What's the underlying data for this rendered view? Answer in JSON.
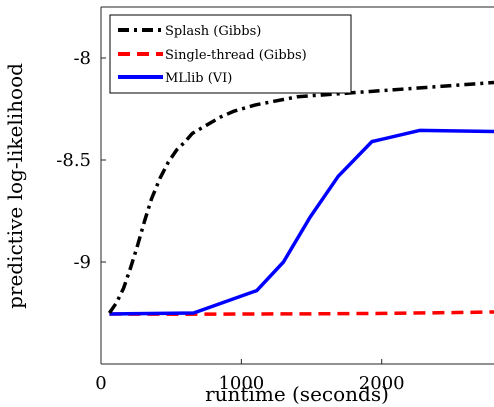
{
  "chart_data": {
    "type": "line",
    "title": "",
    "xlabel": "runtime (seconds)",
    "ylabel": "predictive log-likelihood",
    "xlim": [
      0,
      2800
    ],
    "ylim": [
      -9.5,
      -7.75
    ],
    "xticks": [
      0,
      1000,
      2000
    ],
    "xtick_labels": [
      "0",
      "1000",
      "2000"
    ],
    "yticks": [
      -9,
      -8.5,
      -8
    ],
    "ytick_labels": [
      "-9",
      "-8.5",
      "-8"
    ],
    "grid": false,
    "legend_position": "top-left",
    "series": [
      {
        "name": "Splash (Gibbs)",
        "color": "#000000",
        "dash": "dash-dot",
        "x": [
          60,
          110,
          160,
          210,
          260,
          310,
          360,
          420,
          480,
          540,
          600,
          650,
          750,
          850,
          950,
          1100,
          1250,
          1400,
          1600,
          1800,
          2000,
          2200,
          2400,
          2600,
          2800
        ],
        "y": [
          -9.25,
          -9.2,
          -9.13,
          -9.03,
          -8.92,
          -8.8,
          -8.69,
          -8.59,
          -8.51,
          -8.45,
          -8.41,
          -8.37,
          -8.33,
          -8.29,
          -8.26,
          -8.23,
          -8.21,
          -8.19,
          -8.18,
          -8.17,
          -8.16,
          -8.15,
          -8.14,
          -8.13,
          -8.12
        ]
      },
      {
        "name": "Single-thread (Gibbs)",
        "color": "#ff0000",
        "dash": "dashed",
        "x": [
          60,
          600,
          1000,
          1500,
          2000,
          2500,
          2800
        ],
        "y": [
          -9.255,
          -9.256,
          -9.255,
          -9.254,
          -9.252,
          -9.248,
          -9.245
        ]
      },
      {
        "name": "MLlib (VI)",
        "color": "#0000ff",
        "dash": "solid",
        "x": [
          60,
          660,
          1110,
          1300,
          1490,
          1690,
          1930,
          2270,
          2800
        ],
        "y": [
          -9.255,
          -9.25,
          -9.14,
          -9.0,
          -8.78,
          -8.58,
          -8.41,
          -8.355,
          -8.36
        ]
      }
    ]
  }
}
